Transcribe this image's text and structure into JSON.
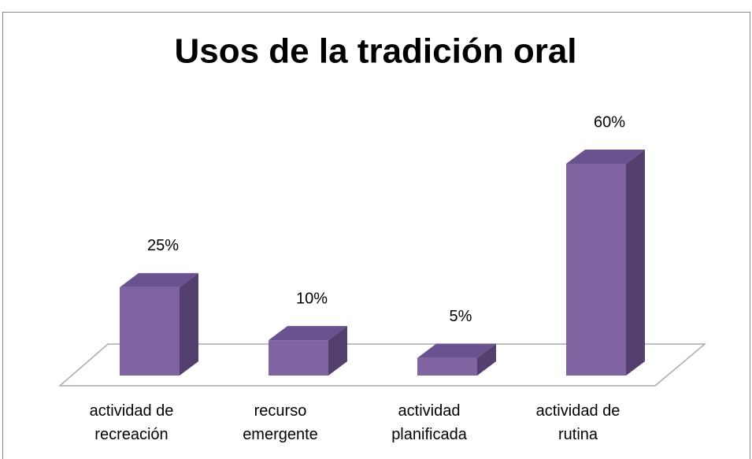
{
  "chart_data": {
    "type": "bar3d",
    "title": "Usos de la tradición oral",
    "categories": [
      "actividad de recreación",
      "recurso emergente",
      "actividad planificada",
      "actividad de rutina"
    ],
    "values": [
      25,
      10,
      5,
      60
    ],
    "value_labels": [
      "25%",
      "10%",
      "5%",
      "60%"
    ],
    "color": "#8064a2"
  }
}
